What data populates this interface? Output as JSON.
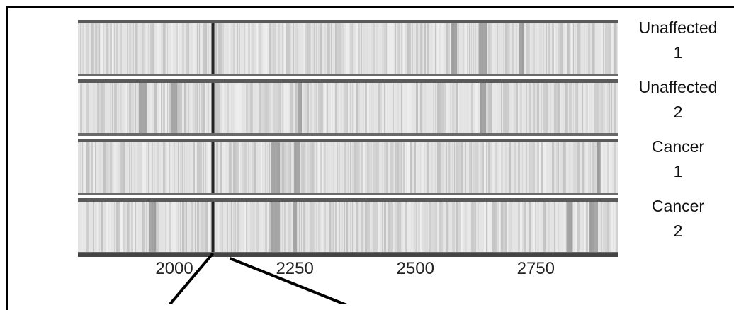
{
  "chart_data": {
    "type": "heatmap",
    "title": "",
    "xlabel": "",
    "ylabel": "",
    "x_range": [
      1800,
      2920
    ],
    "x_ticks": [
      2000,
      2250,
      2500,
      2750
    ],
    "x_tick_labels": [
      "2000",
      "2250",
      "2500",
      "2750"
    ],
    "lanes": [
      {
        "label": "Unaffected\n1",
        "dark_bands": [
          2080,
          2580,
          2640,
          2720
        ],
        "boundaries": [
          2080
        ]
      },
      {
        "label": "Unaffected\n2",
        "dark_bands": [
          2080,
          2000,
          1935,
          2260,
          2640
        ],
        "boundaries": [
          2080,
          2260,
          2640
        ]
      },
      {
        "label": "Cancer\n1",
        "dark_bands": [
          2080,
          2255,
          2210,
          2880
        ],
        "boundaries": [
          2080,
          2260
        ]
      },
      {
        "label": "Cancer\n2",
        "dark_bands": [
          2080,
          1955,
          2210,
          2250,
          2820,
          2870
        ],
        "boundaries": [
          1955,
          2080,
          2260
        ]
      }
    ],
    "annotations": [
      "arrow-to-2080",
      "arrow-from-2095"
    ]
  },
  "colors": {
    "frame": "#000000",
    "band_dark": "#222222",
    "lane_base": "#e4e4e4"
  }
}
